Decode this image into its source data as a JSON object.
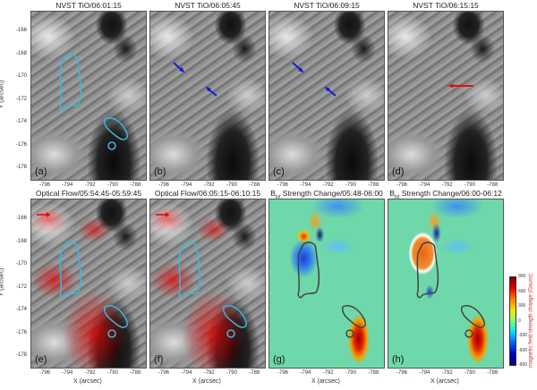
{
  "panels": [
    {
      "id": "a",
      "title": "NVST TiO/06:01:15",
      "label": "(a)",
      "type": "gray",
      "contours": "cyan",
      "arrows": []
    },
    {
      "id": "b",
      "title": "NVST TiO/06:05:45",
      "label": "(b)",
      "type": "gray",
      "contours": "none",
      "arrows": [
        "blue",
        "blue"
      ]
    },
    {
      "id": "c",
      "title": "NVST TiO/06:09:15",
      "label": "(c)",
      "type": "gray",
      "contours": "none",
      "arrows": [
        "blue",
        "blue"
      ]
    },
    {
      "id": "d",
      "title": "NVST TiO/06:15:15",
      "label": "(d)",
      "type": "gray",
      "contours": "none",
      "arrows": [
        "red"
      ]
    },
    {
      "id": "e",
      "title": "Optical Flow/05:54:45-05:59:45",
      "label": "(e)",
      "type": "flow",
      "contours": "cyan",
      "arrows": []
    },
    {
      "id": "f",
      "title": "Optical Flow/06:05:15-06:10:15",
      "label": "(f)",
      "type": "flow",
      "contours": "cyan",
      "arrows": []
    },
    {
      "id": "g",
      "title_prefix": "B",
      "title_sub": "tot",
      "title": " Strength Change/05:48-06:00",
      "label": "(g)",
      "type": "bmap",
      "contours": "dark",
      "arrows": []
    },
    {
      "id": "h",
      "title_prefix": "B",
      "title_sub": "tot",
      "title": " Strength Change/06:00-06:12",
      "label": "(h)",
      "type": "bmap",
      "contours": "dark",
      "arrows": []
    }
  ],
  "axes": {
    "x_ticks": [
      "-796",
      "-794",
      "-792",
      "-790",
      "-788"
    ],
    "y_ticks": [
      "-166",
      "-168",
      "-170",
      "-172",
      "-174",
      "-176",
      "-178"
    ],
    "x_label": "X (arcsec)",
    "y_label": "Y (arcsec)"
  },
  "colorbar": {
    "ticks": [
      "900",
      "600",
      "300",
      "0",
      "-300",
      "-600",
      "-900"
    ],
    "label": "magnetic field strength change (Gauss)",
    "range": [
      -900,
      900
    ]
  },
  "colors": {
    "cyan_contour": "#3ab8e0",
    "dark_contour": "#444444",
    "blue_arrow": "#1a1ad0",
    "red_arrow": "#e01010"
  }
}
